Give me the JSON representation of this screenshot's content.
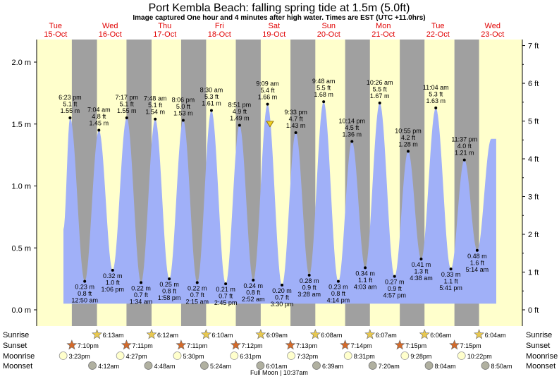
{
  "header": {
    "title": "Port Kembla Beach: falling  spring tide at 1.5m (5.0ft)",
    "subtitle": "Image captured One hour and 4 minutes after high water. Times are EST (UTC +11.0hrs)"
  },
  "colors": {
    "day": "#ffffcc",
    "night": "#a0a0a0",
    "tide": "#a0b0f8",
    "day_label": "#e00000",
    "star": "#d46a2a",
    "moon": "#ffffcc",
    "moonset": "#b0b0a0"
  },
  "chart_data": {
    "type": "area",
    "title": "Port Kembla Beach: falling  spring tide at 1.5m (5.0ft)",
    "x_range": [
      "2024-10-15 00:00",
      "2024-10-23 00:00"
    ],
    "ylim_m": [
      0,
      2.1
    ],
    "ylim_ft": [
      0,
      7
    ],
    "y_ticks_m": [
      "0.0 m",
      "0.5 m",
      "1.0 m",
      "1.5 m",
      "2.0 m"
    ],
    "y_ticks_ft": [
      "0 ft",
      "1 ft",
      "2 ft",
      "3 ft",
      "4 ft",
      "5 ft",
      "6 ft",
      "7 ft"
    ],
    "days": [
      {
        "name": "Tue",
        "date": "15-Oct"
      },
      {
        "name": "Wed",
        "date": "16-Oct"
      },
      {
        "name": "Thu",
        "date": "17-Oct"
      },
      {
        "name": "Fri",
        "date": "18-Oct"
      },
      {
        "name": "Sat",
        "date": "19-Oct"
      },
      {
        "name": "Sun",
        "date": "20-Oct"
      },
      {
        "name": "Mon",
        "date": "21-Oct"
      },
      {
        "name": "Tue",
        "date": "22-Oct"
      },
      {
        "name": "Wed",
        "date": "23-Oct"
      }
    ],
    "tides": [
      {
        "type": "high",
        "day": 0,
        "time": "6:23 pm",
        "ft": "5.1 ft",
        "m": "1.55 m",
        "value": 1.55
      },
      {
        "type": "low",
        "day": 1,
        "time": "12:50 am",
        "ft": "0.8 ft",
        "m": "0.23 m",
        "value": 0.23
      },
      {
        "type": "high",
        "day": 1,
        "time": "7:04 am",
        "ft": "4.8 ft",
        "m": "1.45 m",
        "value": 1.45
      },
      {
        "type": "low",
        "day": 1,
        "time": "1:06 pm",
        "ft": "1.0 ft",
        "m": "0.32 m",
        "value": 0.32
      },
      {
        "type": "high",
        "day": 1,
        "time": "7:17 pm",
        "ft": "5.1 ft",
        "m": "1.55 m",
        "value": 1.55
      },
      {
        "type": "low",
        "day": 2,
        "time": "1:34 am",
        "ft": "0.7 ft",
        "m": "0.22 m",
        "value": 0.22
      },
      {
        "type": "high",
        "day": 2,
        "time": "7:48 am",
        "ft": "5.1 ft",
        "m": "1.54 m",
        "value": 1.54
      },
      {
        "type": "low",
        "day": 2,
        "time": "1:58 pm",
        "ft": "0.8 ft",
        "m": "0.25 m",
        "value": 0.25
      },
      {
        "type": "high",
        "day": 2,
        "time": "8:06 pm",
        "ft": "5.0 ft",
        "m": "1.53 m",
        "value": 1.53
      },
      {
        "type": "low",
        "day": 3,
        "time": "2:15 am",
        "ft": "0.7 ft",
        "m": "0.22 m",
        "value": 0.22
      },
      {
        "type": "high",
        "day": 3,
        "time": "8:30 am",
        "ft": "5.3 ft",
        "m": "1.61 m",
        "value": 1.61
      },
      {
        "type": "low",
        "day": 3,
        "time": "2:45 pm",
        "ft": "0.7 ft",
        "m": "0.21 m",
        "value": 0.21
      },
      {
        "type": "high",
        "day": 3,
        "time": "8:51 pm",
        "ft": "4.9 ft",
        "m": "1.49 m",
        "value": 1.49
      },
      {
        "type": "low",
        "day": 4,
        "time": "2:52 am",
        "ft": "0.8 ft",
        "m": "0.24 m",
        "value": 0.24
      },
      {
        "type": "high",
        "day": 4,
        "time": "9:09 am",
        "ft": "5.4 ft",
        "m": "1.66 m",
        "value": 1.66
      },
      {
        "type": "low",
        "day": 4,
        "time": "3:30 pm",
        "ft": "0.7 ft",
        "m": "0.20 m",
        "value": 0.2
      },
      {
        "type": "high",
        "day": 4,
        "time": "9:33 pm",
        "ft": "4.7 ft",
        "m": "1.43 m",
        "value": 1.43
      },
      {
        "type": "low",
        "day": 5,
        "time": "3:28 am",
        "ft": "0.9 ft",
        "m": "0.28 m",
        "value": 0.28
      },
      {
        "type": "high",
        "day": 5,
        "time": "9:48 am",
        "ft": "5.5 ft",
        "m": "1.68 m",
        "value": 1.68
      },
      {
        "type": "low",
        "day": 5,
        "time": "4:14 pm",
        "ft": "0.8 ft",
        "m": "0.23 m",
        "value": 0.23
      },
      {
        "type": "high",
        "day": 5,
        "time": "10:14 pm",
        "ft": "4.5 ft",
        "m": "1.36 m",
        "value": 1.36
      },
      {
        "type": "low",
        "day": 6,
        "time": "4:03 am",
        "ft": "1.1 ft",
        "m": "0.34 m",
        "value": 0.34
      },
      {
        "type": "high",
        "day": 6,
        "time": "10:26 am",
        "ft": "5.5 ft",
        "m": "1.67 m",
        "value": 1.67
      },
      {
        "type": "low",
        "day": 6,
        "time": "4:57 pm",
        "ft": "0.9 ft",
        "m": "0.27 m",
        "value": 0.27
      },
      {
        "type": "high",
        "day": 6,
        "time": "10:55 pm",
        "ft": "4.2 ft",
        "m": "1.28 m",
        "value": 1.28
      },
      {
        "type": "low",
        "day": 7,
        "time": "4:38 am",
        "ft": "1.3 ft",
        "m": "0.41 m",
        "value": 0.41
      },
      {
        "type": "high",
        "day": 7,
        "time": "11:04 am",
        "ft": "5.3 ft",
        "m": "1.63 m",
        "value": 1.63
      },
      {
        "type": "low",
        "day": 7,
        "time": "5:41 pm",
        "ft": "1.1 ft",
        "m": "0.33 m",
        "value": 0.33
      },
      {
        "type": "high",
        "day": 7,
        "time": "11:37 pm",
        "ft": "4.0 ft",
        "m": "1.21 m",
        "value": 1.21
      },
      {
        "type": "low",
        "day": 8,
        "time": "5:14 am",
        "ft": "1.6 ft",
        "m": "0.48 m",
        "value": 0.48
      }
    ],
    "current": {
      "day": 4,
      "time": "10:13 am",
      "value": 1.5
    },
    "sun": [
      {
        "day": 0,
        "sunset": "7:10pm"
      },
      {
        "day": 1,
        "sunrise": "6:13am",
        "sunset": "7:11pm"
      },
      {
        "day": 2,
        "sunrise": "6:12am",
        "sunset": "7:11pm"
      },
      {
        "day": 3,
        "sunrise": "6:10am",
        "sunset": "7:12pm"
      },
      {
        "day": 4,
        "sunrise": "6:09am",
        "sunset": "7:13pm"
      },
      {
        "day": 5,
        "sunrise": "6:08am",
        "sunset": "7:14pm"
      },
      {
        "day": 6,
        "sunrise": "6:07am",
        "sunset": "7:15pm"
      },
      {
        "day": 7,
        "sunrise": "6:06am",
        "sunset": "7:15pm"
      },
      {
        "day": 8,
        "sunrise": "6:04am"
      }
    ],
    "moonrise": [
      {
        "day": 0,
        "time": "3:23pm"
      },
      {
        "day": 1,
        "time": "4:27pm"
      },
      {
        "day": 2,
        "time": "5:30pm"
      },
      {
        "day": 3,
        "time": "6:31pm"
      },
      {
        "day": 4,
        "time": "7:32pm"
      },
      {
        "day": 5,
        "time": "8:31pm"
      },
      {
        "day": 6,
        "time": "9:28pm"
      },
      {
        "day": 7,
        "time": "10:22pm"
      }
    ],
    "moonset": [
      {
        "day": 1,
        "time": "4:12am"
      },
      {
        "day": 2,
        "time": "4:48am"
      },
      {
        "day": 3,
        "time": "5:24am"
      },
      {
        "day": 4,
        "time": "6:01am"
      },
      {
        "day": 5,
        "time": "6:39am"
      },
      {
        "day": 6,
        "time": "7:20am"
      },
      {
        "day": 7,
        "time": "8:04am"
      },
      {
        "day": 8,
        "time": "8:50am"
      }
    ],
    "row_labels": {
      "sunrise": "Sunrise",
      "sunset": "Sunset",
      "moonrise": "Moonrise",
      "moonset": "Moonset"
    },
    "footer": "Full Moon | 10:37am"
  }
}
